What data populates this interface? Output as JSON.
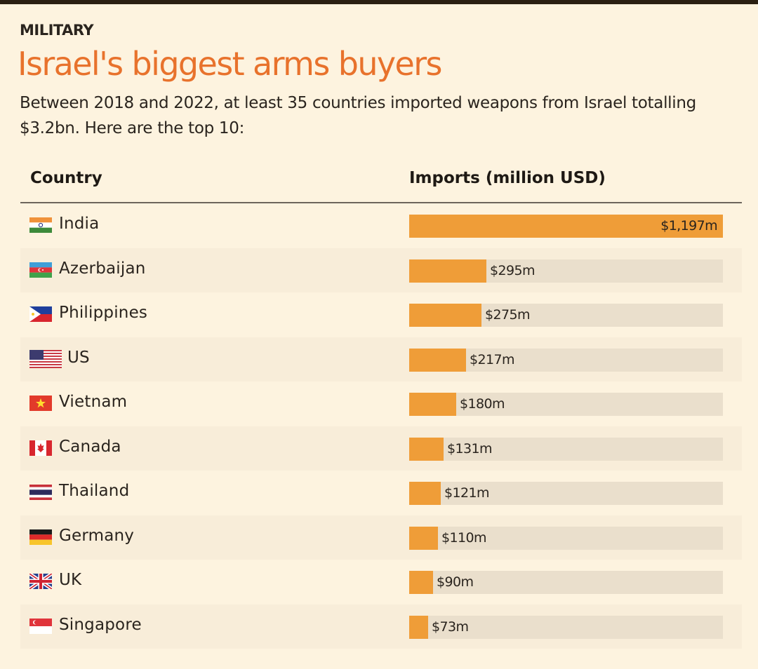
{
  "header": {
    "kicker": "MILITARY",
    "title": "Israel's biggest arms buyers",
    "subtitle": "Between 2018 and 2022, at least 35 countries imported weapons from Israel totalling $3.2bn. Here are the top 10:"
  },
  "colors": {
    "accent": "#e8722c",
    "bar": "#ef9d38",
    "track": "#eadfcc",
    "background": "#fdf3df"
  },
  "chart_data": {
    "type": "bar",
    "orientation": "horizontal",
    "columns": [
      "Country",
      "Imports (million USD)"
    ],
    "categories": [
      "India",
      "Azerbaijan",
      "Philippines",
      "US",
      "Vietnam",
      "Canada",
      "Thailand",
      "Germany",
      "UK",
      "Singapore"
    ],
    "values": [
      1197,
      295,
      275,
      217,
      180,
      131,
      121,
      110,
      90,
      73
    ],
    "value_labels": [
      "$1,197m",
      "$295m",
      "$275m",
      "$217m",
      "$180m",
      "$131m",
      "$121m",
      "$110m",
      "$90m",
      "$73m"
    ],
    "flag_icons": [
      "india-flag",
      "azerbaijan-flag",
      "philippines-flag",
      "us-flag",
      "vietnam-flag",
      "canada-flag",
      "thailand-flag",
      "germany-flag",
      "uk-flag",
      "singapore-flag"
    ],
    "xlim": [
      0,
      1197
    ],
    "grid": false,
    "legend": "none"
  }
}
